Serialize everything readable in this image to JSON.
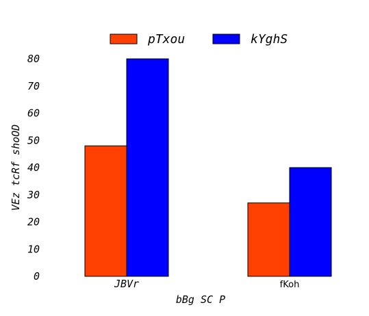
{
  "chart_data": {
    "type": "bar",
    "categories": [
      "JBVr",
      "fKoh"
    ],
    "series": [
      {
        "name": "pTxou",
        "values": [
          48,
          27
        ],
        "color": "#ff4000"
      },
      {
        "name": "kYghS",
        "values": [
          80,
          40
        ],
        "color": "#0000ff"
      }
    ],
    "xlabel": "bBg SC P",
    "ylabel": "VEz tcRf shoOD",
    "ylim": [
      0,
      80
    ],
    "yticks": [
      0,
      10,
      20,
      30,
      40,
      50,
      60,
      70,
      80
    ],
    "grid": false,
    "legend_position": "top-center"
  }
}
